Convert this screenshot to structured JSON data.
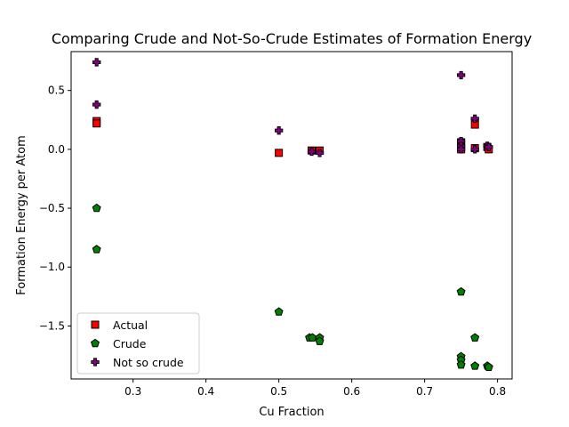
{
  "chart_data": {
    "type": "scatter",
    "title": "Comparing Crude and Not-So-Crude Estimates of Formation Energy",
    "xlabel": "Cu Fraction",
    "ylabel": "Formation Energy per Atom",
    "xlim": [
      0.215,
      0.82
    ],
    "ylim": [
      -1.95,
      0.83
    ],
    "xticks": [
      0.3,
      0.4,
      0.5,
      0.6,
      0.7,
      0.8
    ],
    "xtick_labels": [
      "0.3",
      "0.4",
      "0.5",
      "0.6",
      "0.7",
      "0.8"
    ],
    "yticks": [
      -1.5,
      -1.0,
      -0.5,
      0.0,
      0.5
    ],
    "ytick_labels": [
      "−1.5",
      "−1.0",
      "−0.5",
      "0.0",
      "0.5"
    ],
    "grid": false,
    "legend_position": "lower-left",
    "series": [
      {
        "name": "Actual",
        "marker": "square",
        "color": "#ff0000",
        "x": [
          0.25,
          0.25,
          0.5,
          0.545,
          0.556,
          0.75,
          0.75,
          0.75,
          0.769,
          0.769,
          0.786,
          0.788
        ],
        "y": [
          0.24,
          0.22,
          -0.03,
          -0.01,
          -0.01,
          0.06,
          0.02,
          0.0,
          0.21,
          0.01,
          0.02,
          0.0
        ]
      },
      {
        "name": "Crude",
        "marker": "pentagon",
        "color": "#008000",
        "x": [
          0.25,
          0.25,
          0.5,
          0.542,
          0.546,
          0.556,
          0.556,
          0.75,
          0.75,
          0.75,
          0.75,
          0.769,
          0.769,
          0.786,
          0.788
        ],
        "y": [
          -0.5,
          -0.85,
          -1.38,
          -1.6,
          -1.6,
          -1.6,
          -1.63,
          -1.21,
          -1.76,
          -1.79,
          -1.83,
          -1.6,
          -1.84,
          -1.84,
          -1.85
        ]
      },
      {
        "name": "Not so crude",
        "marker": "plus",
        "color": "#800080",
        "x": [
          0.25,
          0.25,
          0.5,
          0.545,
          0.556,
          0.75,
          0.75,
          0.75,
          0.75,
          0.769,
          0.769,
          0.786,
          0.788
        ],
        "y": [
          0.74,
          0.38,
          0.16,
          -0.02,
          -0.03,
          0.63,
          0.07,
          0.03,
          0.0,
          0.26,
          0.0,
          0.03,
          0.02
        ]
      }
    ]
  }
}
